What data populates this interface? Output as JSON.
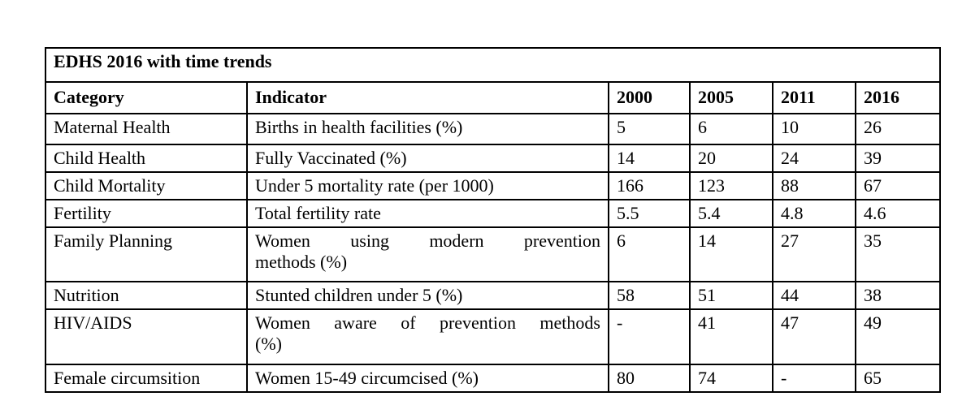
{
  "title": "EDHS 2016 with time trends",
  "table": {
    "columns": [
      "Category",
      "Indicator",
      "2000",
      "2005",
      "2011",
      "2016"
    ],
    "rows": [
      {
        "category": "Maternal Health",
        "indicator": [
          "Births in health facilities (%)"
        ],
        "values": [
          "5",
          "6",
          "10",
          "26"
        ]
      },
      {
        "category": "Child Health",
        "indicator": [
          "Fully Vaccinated (%)"
        ],
        "values": [
          "14",
          "20",
          "24",
          "39"
        ]
      },
      {
        "category": "Child Mortality",
        "indicator": [
          "Under 5 mortality rate (per 1000)"
        ],
        "values": [
          "166",
          "123",
          "88",
          "67"
        ]
      },
      {
        "category": "Fertility",
        "indicator": [
          "Total fertility rate"
        ],
        "values": [
          "5.5",
          "5.4",
          "4.8",
          "4.6"
        ]
      },
      {
        "category": "Family Planning",
        "indicator": [
          "Women using modern prevention",
          "methods (%)"
        ],
        "values": [
          "6",
          "14",
          "27",
          "35"
        ]
      },
      {
        "category": "Nutrition",
        "indicator": [
          "Stunted children under 5 (%)"
        ],
        "values": [
          "58",
          "51",
          "44",
          "38"
        ]
      },
      {
        "category": "HIV/AIDS",
        "indicator": [
          "Women aware of prevention methods",
          "(%)"
        ],
        "values": [
          "-",
          "41",
          "47",
          "49"
        ]
      },
      {
        "category": "Female circumsition",
        "indicator": [
          "Women 15-49 circumcised (%)"
        ],
        "values": [
          "80",
          "74",
          "-",
          "65"
        ]
      }
    ]
  },
  "colors": {
    "border": "#000000",
    "text": "#000000",
    "background": "#ffffff"
  }
}
